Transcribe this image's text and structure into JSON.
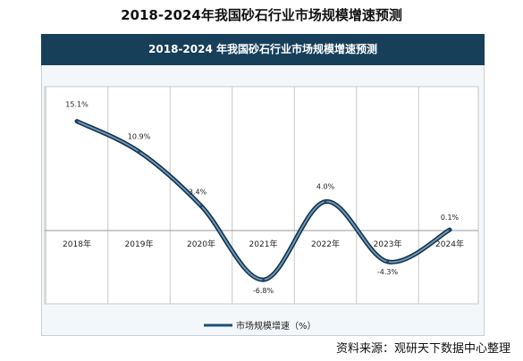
{
  "header": {
    "page_title": "2018-2024年我国砂石行业市场规模增速预测",
    "banner_title": "2018-2024 年我国砂石行业市场规模增速预测"
  },
  "footer": {
    "source": "资料来源：观研天下数据中心整理"
  },
  "colors": {
    "banner": "#173f5a",
    "line": "#1f4f75",
    "grid": "#c8c8c8"
  },
  "chart_data": {
    "type": "line",
    "title": "2018-2024 年我国砂石行业市场规模增速预测",
    "categories": [
      "2018年",
      "2019年",
      "2020年",
      "2021年",
      "2022年",
      "2023年",
      "2024年"
    ],
    "series": [
      {
        "name": "市场规模增速（%）",
        "values": [
          15.1,
          10.9,
          3.4,
          -6.8,
          4.0,
          -4.3,
          0.1
        ],
        "data_labels": [
          "15.1%",
          "10.9%",
          "3.4%",
          "-6.8%",
          "4.0%",
          "-4.3%",
          "0.1%"
        ]
      }
    ],
    "ylim": [
      -8,
      20
    ],
    "grid": true,
    "legend": "bottom",
    "line_style": "smooth"
  }
}
